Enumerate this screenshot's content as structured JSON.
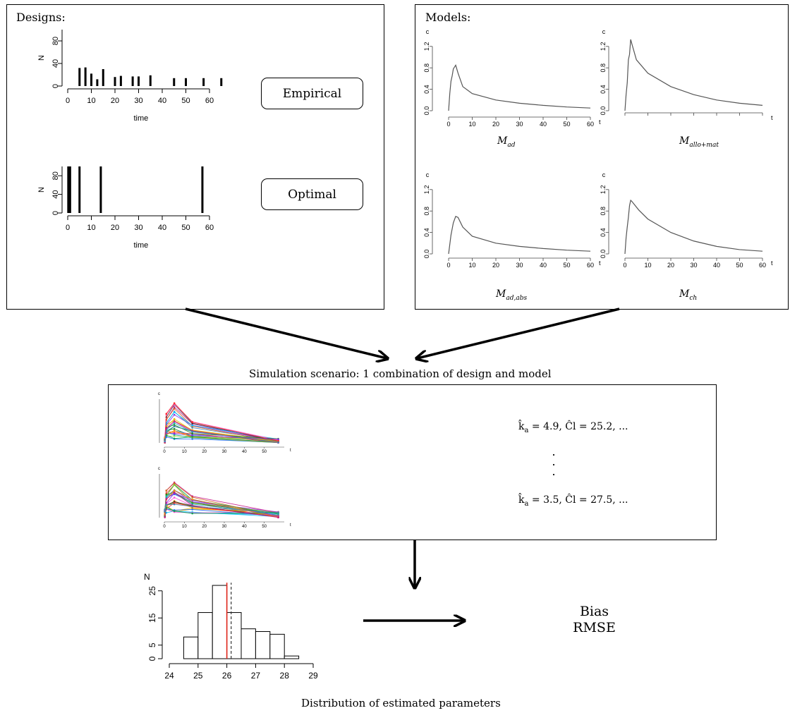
{
  "designs": {
    "heading": "Designs:",
    "empirical_label": "Empirical",
    "optimal_label": "Optimal",
    "ylabel": "N",
    "xlabel": "time"
  },
  "models": {
    "heading": "Models:",
    "ylabel": "c",
    "xlabel": "t",
    "panels": [
      {
        "script": "M",
        "sub": "ad"
      },
      {
        "script": "M",
        "sub": "allo+mat"
      },
      {
        "script": "M",
        "sub": "ad,abs"
      },
      {
        "script": "M",
        "sub": "ch"
      }
    ]
  },
  "scenario_caption": "Simulation scenario: 1 combination of design and model",
  "estimates": {
    "line1": "k̂a = 4.9, Ĉl = 25.2, ...",
    "line1_k": "k̂",
    "line1_ksub": "a",
    "line1_rest": " = 4.9, Ĉl = 25.2, ...",
    "dots": [
      ".",
      ".",
      "."
    ],
    "line2_k": "k̂",
    "line2_ksub": "a",
    "line2_rest": " = 3.5, Ĉl = 27.5, ..."
  },
  "result": {
    "line1": "Bias",
    "line2": "RMSE"
  },
  "distribution_caption": "Distribution of estimated parameters",
  "chart_data": [
    {
      "type": "bar",
      "title": "Empirical",
      "xlabel": "time",
      "ylabel": "N",
      "x": [
        5,
        7.5,
        10,
        12.5,
        15,
        20,
        22.5,
        27.5,
        30,
        35,
        45,
        50,
        57.5,
        65
      ],
      "values": [
        32,
        33,
        22,
        12,
        30,
        16,
        18,
        17,
        17,
        19,
        14,
        14,
        14,
        14
      ],
      "xticks": [
        0,
        10,
        20,
        30,
        40,
        50,
        60
      ],
      "yticks": [
        0,
        40,
        80
      ],
      "ylim": [
        0,
        100
      ]
    },
    {
      "type": "bar",
      "title": "Optimal",
      "xlabel": "time",
      "ylabel": "N",
      "x": [
        0.25,
        1,
        5,
        14,
        57
      ],
      "values": [
        100,
        100,
        100,
        100,
        100
      ],
      "xticks": [
        0,
        10,
        20,
        30,
        40,
        50,
        60
      ],
      "yticks": [
        0,
        40,
        80
      ],
      "ylim": [
        0,
        100
      ]
    },
    {
      "type": "line",
      "xlabel": "t",
      "ylabel": "c",
      "series": [
        {
          "x": [
            0,
            0.5,
            1,
            1.5,
            2,
            3,
            4,
            6,
            10,
            20,
            30,
            40,
            50,
            60
          ],
          "values": [
            0,
            0.32,
            0.55,
            0.65,
            0.78,
            0.85,
            0.7,
            0.45,
            0.32,
            0.2,
            0.14,
            0.1,
            0.07,
            0.05
          ]
        },
        {
          "x": [
            0,
            0.5,
            1,
            1.5,
            2,
            2.5,
            3,
            5,
            10,
            20,
            30,
            40,
            50,
            60
          ],
          "values": [
            0,
            0.3,
            0.52,
            0.95,
            1.05,
            1.33,
            1.25,
            0.95,
            0.7,
            0.45,
            0.3,
            0.2,
            0.14,
            0.1
          ]
        },
        {
          "x": [
            0,
            1,
            2,
            3,
            4,
            6,
            10,
            20,
            30,
            40,
            50,
            60
          ],
          "values": [
            0,
            0.35,
            0.58,
            0.7,
            0.68,
            0.5,
            0.33,
            0.2,
            0.14,
            0.1,
            0.07,
            0.05
          ]
        },
        {
          "x": [
            0,
            0.5,
            1,
            1.5,
            2,
            2.5,
            3,
            6,
            10,
            20,
            30,
            40,
            50,
            60
          ],
          "values": [
            0,
            0.3,
            0.5,
            0.68,
            0.9,
            1.0,
            0.98,
            0.82,
            0.65,
            0.4,
            0.24,
            0.14,
            0.08,
            0.05
          ]
        }
      ],
      "xticks": [
        0,
        10,
        20,
        30,
        40,
        50,
        60
      ],
      "yticks": [
        0.0,
        0.4,
        0.8,
        1.2
      ],
      "ylim": [
        0,
        1.35
      ]
    },
    {
      "type": "bar",
      "xlabel": "",
      "ylabel": "N",
      "bin_edges": [
        24.5,
        25,
        25.5,
        26,
        26.5,
        27,
        27.5,
        28,
        28.5
      ],
      "values": [
        8,
        17,
        27,
        17,
        11,
        10,
        9,
        1
      ],
      "true_value": 26.0,
      "mean_estimate": 26.15,
      "xticks": [
        24,
        25,
        26,
        27,
        28,
        29
      ],
      "yticks": [
        0,
        5,
        15,
        25
      ],
      "ylim": [
        0,
        28
      ]
    }
  ]
}
